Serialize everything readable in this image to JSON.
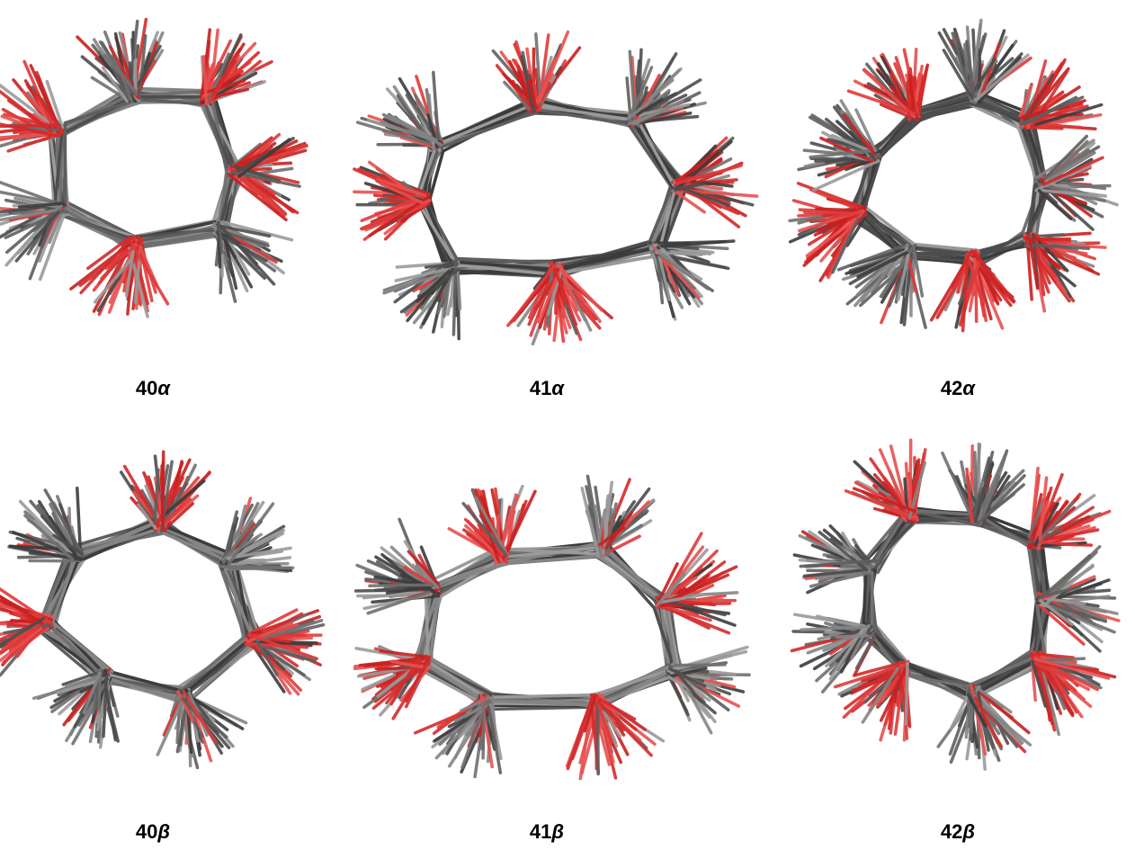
{
  "panels": [
    {
      "number": "40",
      "greek": "α"
    },
    {
      "number": "41",
      "greek": "α"
    },
    {
      "number": "42",
      "greek": "α"
    },
    {
      "number": "40",
      "greek": "β"
    },
    {
      "number": "41",
      "greek": "β"
    },
    {
      "number": "42",
      "greek": "β"
    }
  ]
}
